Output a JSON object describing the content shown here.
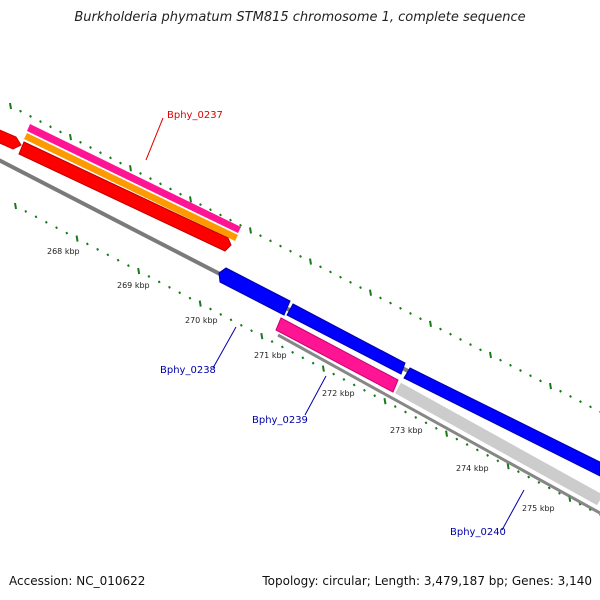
{
  "title": "Burkholderia phymatum STM815 chromosome 1, complete sequence",
  "accession": "Accession: NC_010622",
  "summary": "Topology: circular; Length: 3,479,187 bp; Genes: 3,140",
  "kbp_labels": [
    "268 kbp",
    "269 kbp",
    "270 kbp",
    "271 kbp",
    "272 kbp",
    "273 kbp",
    "274 kbp",
    "275 kbp"
  ],
  "genes": [
    {
      "name": "Bphy_0237",
      "label_color": "#e00000"
    },
    {
      "name": "Bphy_0238",
      "label_color": "#0000aa"
    },
    {
      "name": "Bphy_0239",
      "label_color": "#0000aa"
    },
    {
      "name": "Bphy_0240",
      "label_color": "#0000aa"
    }
  ],
  "colors": {
    "backbone": "#808080",
    "tick_green": "#1a7a1a",
    "red": "#ff0000",
    "orange": "#ff9900",
    "pink": "#ff1493",
    "blue": "#0000ff",
    "light_grey": "#cccccc"
  }
}
